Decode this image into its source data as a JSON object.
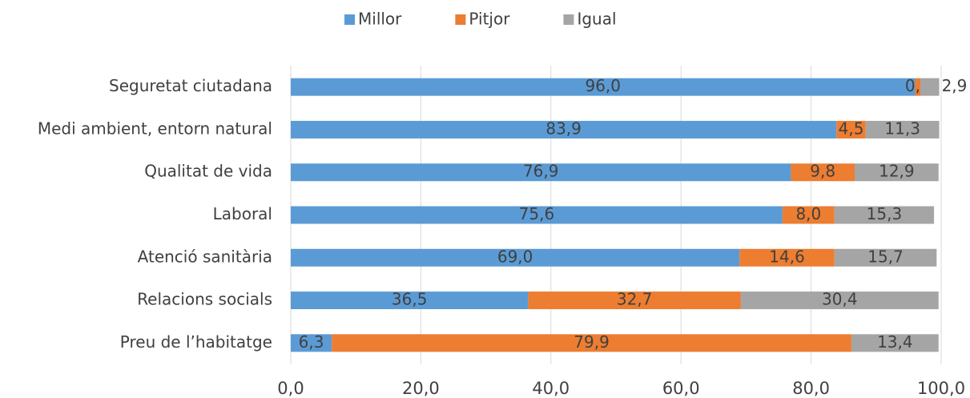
{
  "chart_data": {
    "type": "stacked_barh",
    "categories": [
      "Seguretat ciutadana",
      "Medi ambient, entorn natural",
      "Qualitat de vida",
      "Laboral",
      "Atenció sanitària",
      "Relacions socials",
      "Preu de l’habitatge"
    ],
    "series": [
      {
        "name": "Millor",
        "color": "#5b9bd5",
        "values": [
          96.0,
          83.9,
          76.9,
          75.6,
          69.0,
          36.5,
          6.3
        ],
        "value_labels": [
          "96,0",
          "83,9",
          "76,9",
          "75,6",
          "69,0",
          "36,5",
          "6,3"
        ]
      },
      {
        "name": "Pitjor",
        "color": "#ed7d31",
        "values": [
          0.8,
          4.5,
          9.8,
          8.0,
          14.6,
          32.7,
          79.9
        ],
        "value_labels": [
          "0,8",
          "4,5",
          "9,8",
          "8,0",
          "14,6",
          "32,7",
          "79,9"
        ]
      },
      {
        "name": "Igual",
        "color": "#a5a5a5",
        "values": [
          2.9,
          11.3,
          12.9,
          15.3,
          15.7,
          30.4,
          13.4
        ],
        "value_labels": [
          "2,9",
          "11,3",
          "12,9",
          "15,3",
          "15,7",
          "30,4",
          "13,4"
        ]
      }
    ],
    "xlim": [
      0,
      100
    ],
    "xticks": [
      {
        "value": 0,
        "label": "0,0"
      },
      {
        "value": 20,
        "label": "20,0"
      },
      {
        "value": 40,
        "label": "40,0"
      },
      {
        "value": 60,
        "label": "60,0"
      },
      {
        "value": 80,
        "label": "80,0"
      },
      {
        "value": 100,
        "label": "100,0"
      }
    ],
    "grid": true,
    "legend": "top"
  }
}
